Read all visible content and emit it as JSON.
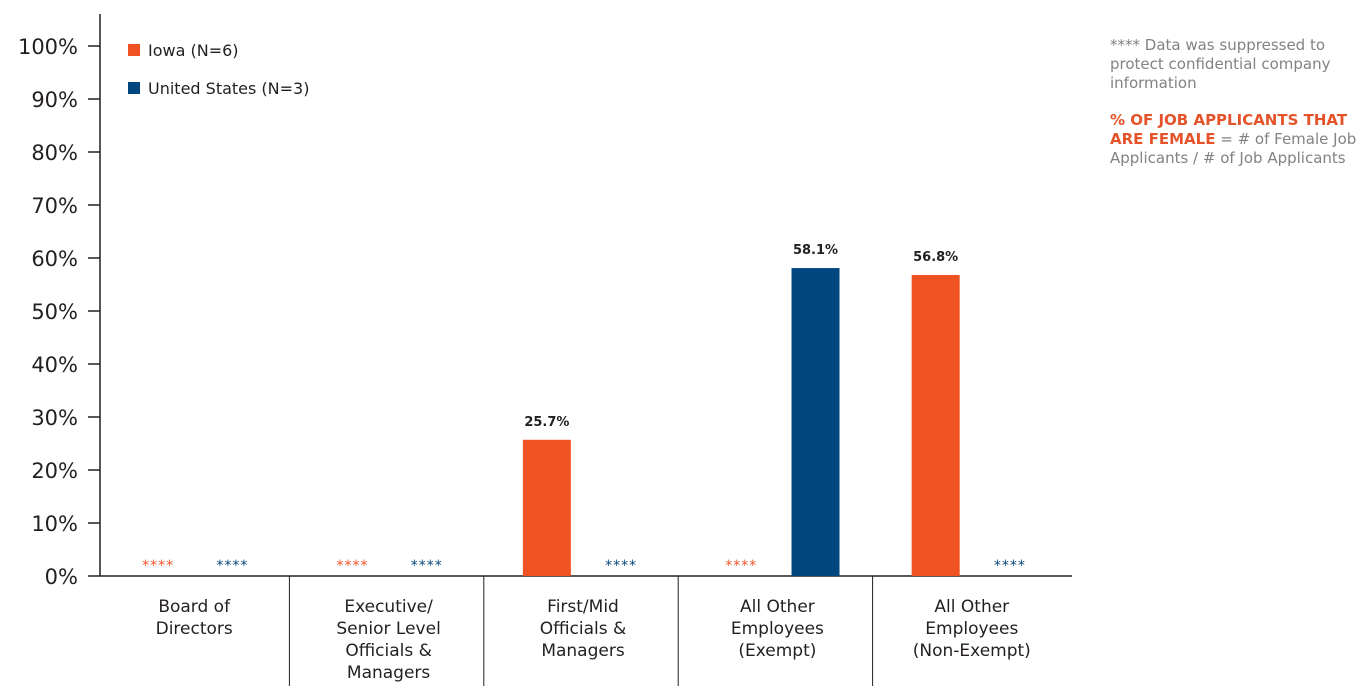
{
  "chart_data": {
    "type": "bar",
    "categories": [
      [
        "Board of",
        "Directors"
      ],
      [
        "Executive/",
        "Senior Level",
        "Officials &",
        "Managers"
      ],
      [
        "First/Mid",
        "Officials &",
        "Managers"
      ],
      [
        "All Other",
        "Employees",
        "(Exempt)"
      ],
      [
        "All Other",
        "Employees",
        "(Non-Exempt)"
      ]
    ],
    "series": [
      {
        "name": "Iowa (N=6)",
        "color": "#f05323",
        "values": [
          null,
          null,
          25.7,
          null,
          56.8
        ],
        "labels": [
          "****",
          "****",
          "25.7%",
          "****",
          "56.8%"
        ]
      },
      {
        "name": "United States (N=3)",
        "color": "#00467f",
        "values": [
          null,
          null,
          null,
          58.1,
          null
        ],
        "labels": [
          "****",
          "****",
          "****",
          "58.1%",
          "****"
        ]
      }
    ],
    "ylim": [
      0,
      100
    ],
    "yticks": [
      "0%",
      "10%",
      "20%",
      "30%",
      "40%",
      "50%",
      "60%",
      "70%",
      "80%",
      "90%",
      "100%"
    ],
    "legend_position": "top-left",
    "grid": false
  },
  "notes": {
    "suppressed": "**** Data was suppressed to protect confidential company information",
    "definition_term": "% OF JOB APPLICANTS THAT ARE FEMALE",
    "definition_text": " = # of Female Job Applicants / # of Job Applicants"
  },
  "colors": {
    "axis": "#231f20",
    "note_text": "#808285",
    "accent": "#e5532a"
  }
}
